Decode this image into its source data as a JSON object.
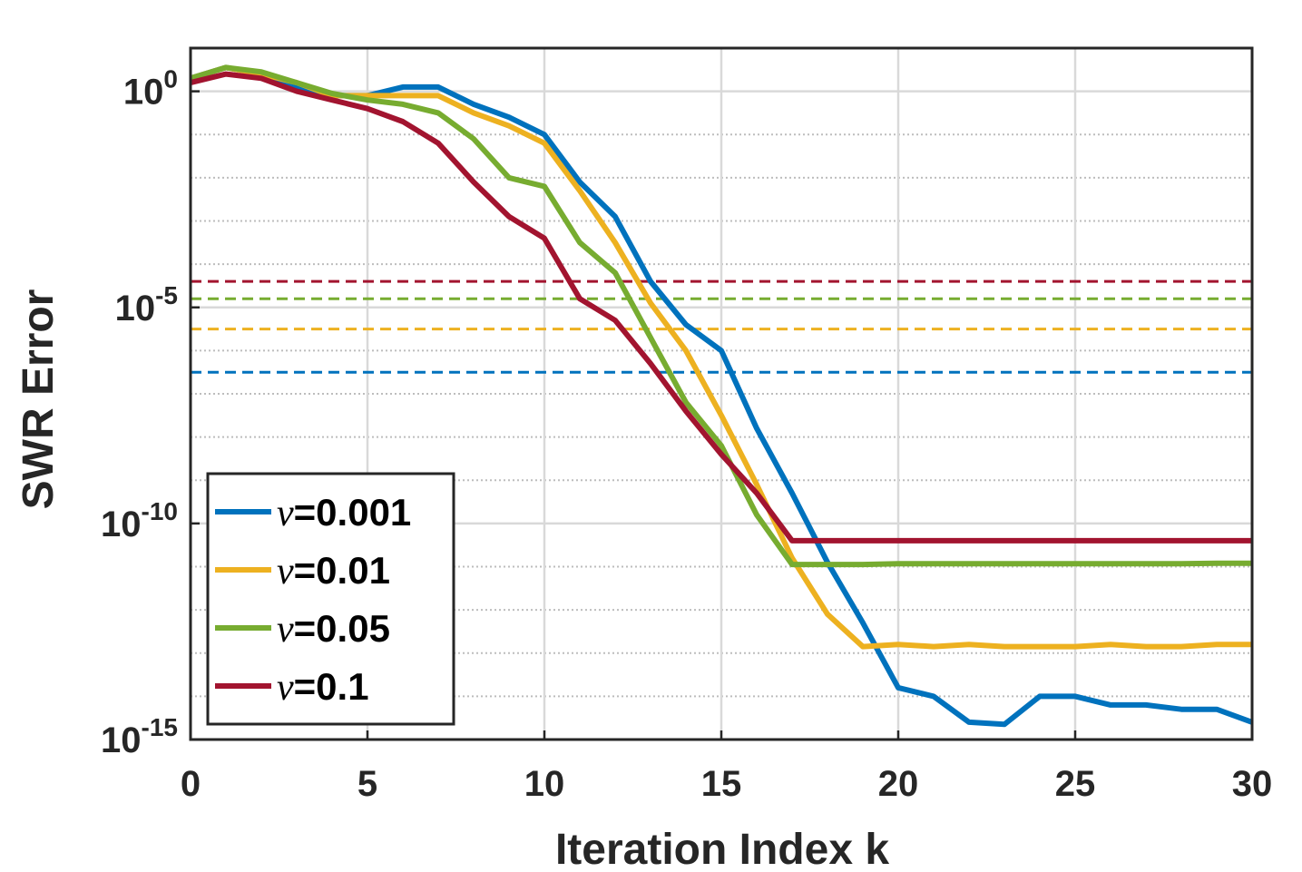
{
  "chart_data": {
    "type": "line",
    "title": "",
    "xlabel": "Iteration Index k",
    "ylabel": "SWR Error",
    "xlim": [
      0,
      30
    ],
    "ylim_exponent": [
      -15,
      1
    ],
    "yscale": "log",
    "x_ticks": [
      0,
      5,
      10,
      15,
      20,
      25,
      30
    ],
    "x_tick_labels": [
      "0",
      "5",
      "10",
      "15",
      "20",
      "25",
      "30"
    ],
    "y_tick_base": "10",
    "y_tick_exponents": [
      "0",
      "-5",
      "-10",
      "-15"
    ],
    "grid": true,
    "legend_position": "bottom-left",
    "legend_symbol": "ν",
    "x": [
      0,
      1,
      2,
      3,
      4,
      5,
      6,
      7,
      8,
      9,
      10,
      11,
      12,
      13,
      14,
      15,
      16,
      17,
      18,
      19,
      20,
      21,
      22,
      23,
      24,
      25,
      26,
      27,
      28,
      29,
      30
    ],
    "series": [
      {
        "name": "=0.001",
        "color": "#0072BD",
        "log10_values": [
          0.3,
          0.55,
          0.4,
          0.1,
          -0.1,
          -0.1,
          0.1,
          0.1,
          -0.3,
          -0.6,
          -1.0,
          -2.1,
          -2.9,
          -4.4,
          -5.4,
          -6.0,
          -7.8,
          -9.3,
          -10.9,
          -12.3,
          -13.8,
          -14.0,
          -14.6,
          -14.65,
          -14.0,
          -14.0,
          -14.2,
          -14.2,
          -14.3,
          -14.3,
          -14.6
        ],
        "threshold_log10": -6.5
      },
      {
        "name": "=0.01",
        "color": "#EDB120",
        "log10_values": [
          0.3,
          0.55,
          0.4,
          0.2,
          -0.1,
          -0.1,
          -0.1,
          -0.1,
          -0.5,
          -0.8,
          -1.2,
          -2.3,
          -3.5,
          -4.9,
          -6.0,
          -7.5,
          -9.1,
          -10.8,
          -12.1,
          -12.85,
          -12.8,
          -12.85,
          -12.8,
          -12.85,
          -12.85,
          -12.85,
          -12.8,
          -12.85,
          -12.85,
          -12.8,
          -12.8
        ],
        "threshold_log10": -5.5
      },
      {
        "name": "=0.05",
        "color": "#77AC30",
        "log10_values": [
          0.3,
          0.55,
          0.45,
          0.2,
          -0.05,
          -0.2,
          -0.3,
          -0.5,
          -1.1,
          -2.0,
          -2.2,
          -3.5,
          -4.2,
          -5.7,
          -7.2,
          -8.2,
          -9.8,
          -10.95,
          -10.95,
          -10.95,
          -10.93,
          -10.93,
          -10.93,
          -10.93,
          -10.93,
          -10.93,
          -10.93,
          -10.93,
          -10.93,
          -10.92,
          -10.92
        ],
        "threshold_log10": -4.8
      },
      {
        "name": "=0.1",
        "color": "#A2142F",
        "log10_values": [
          0.2,
          0.4,
          0.3,
          0.0,
          -0.2,
          -0.4,
          -0.7,
          -1.2,
          -2.1,
          -2.9,
          -3.4,
          -4.8,
          -5.3,
          -6.3,
          -7.4,
          -8.4,
          -9.3,
          -10.4,
          -10.4,
          -10.4,
          -10.4,
          -10.4,
          -10.4,
          -10.4,
          -10.4,
          -10.4,
          -10.4,
          -10.4,
          -10.4,
          -10.4,
          -10.4
        ],
        "threshold_log10": -4.4
      }
    ]
  }
}
